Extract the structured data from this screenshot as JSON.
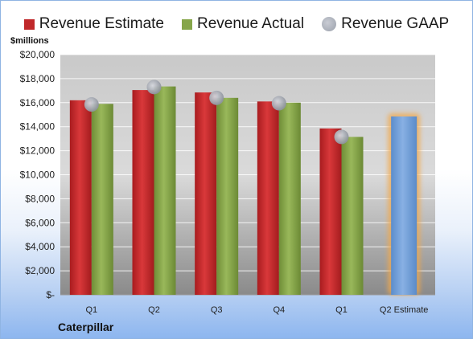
{
  "chart_data": {
    "type": "bar",
    "title": "",
    "ylabel": "$millions",
    "xlabel": "",
    "ylim": [
      0,
      20000
    ],
    "yticks": [
      0,
      2000,
      4000,
      6000,
      8000,
      10000,
      12000,
      14000,
      16000,
      18000,
      20000
    ],
    "ytick_labels": [
      "$-",
      "$2,000",
      "$4,000",
      "$6,000",
      "$8,000",
      "$10,000",
      "$12,000",
      "$14,000",
      "$16,000",
      "$18,000",
      "$20,000"
    ],
    "categories": [
      "Q1",
      "Q2",
      "Q3",
      "Q4",
      "Q1",
      "Q2 Estimate"
    ],
    "series": [
      {
        "name": "Revenue Estimate",
        "kind": "bar",
        "color": "#c0282a",
        "values": [
          16200,
          17050,
          16850,
          16100,
          13850,
          null
        ]
      },
      {
        "name": "Revenue Actual",
        "kind": "bar",
        "color": "#86a64a",
        "values": [
          15900,
          17350,
          16400,
          16000,
          13150,
          null
        ]
      },
      {
        "name": "Revenue GAAP",
        "kind": "dot",
        "color": "#a9adb6",
        "values": [
          15850,
          17300,
          16400,
          15950,
          13150,
          null
        ]
      },
      {
        "name": "",
        "kind": "highlight-bar",
        "color": "#6f9fd8",
        "glow": "#f3a84a",
        "values": [
          null,
          null,
          null,
          null,
          null,
          14850
        ]
      }
    ],
    "grid": true,
    "legend_position": "top"
  },
  "legend": {
    "items": [
      {
        "label": "Revenue Estimate",
        "color": "#c0282a",
        "marker": "square"
      },
      {
        "label": "Revenue Actual",
        "color": "#86a64a",
        "marker": "square"
      },
      {
        "label": "Revenue GAAP",
        "color": "#a9adb6",
        "marker": "dot"
      }
    ]
  },
  "unit_label": "$millions",
  "company": "Caterpillar"
}
